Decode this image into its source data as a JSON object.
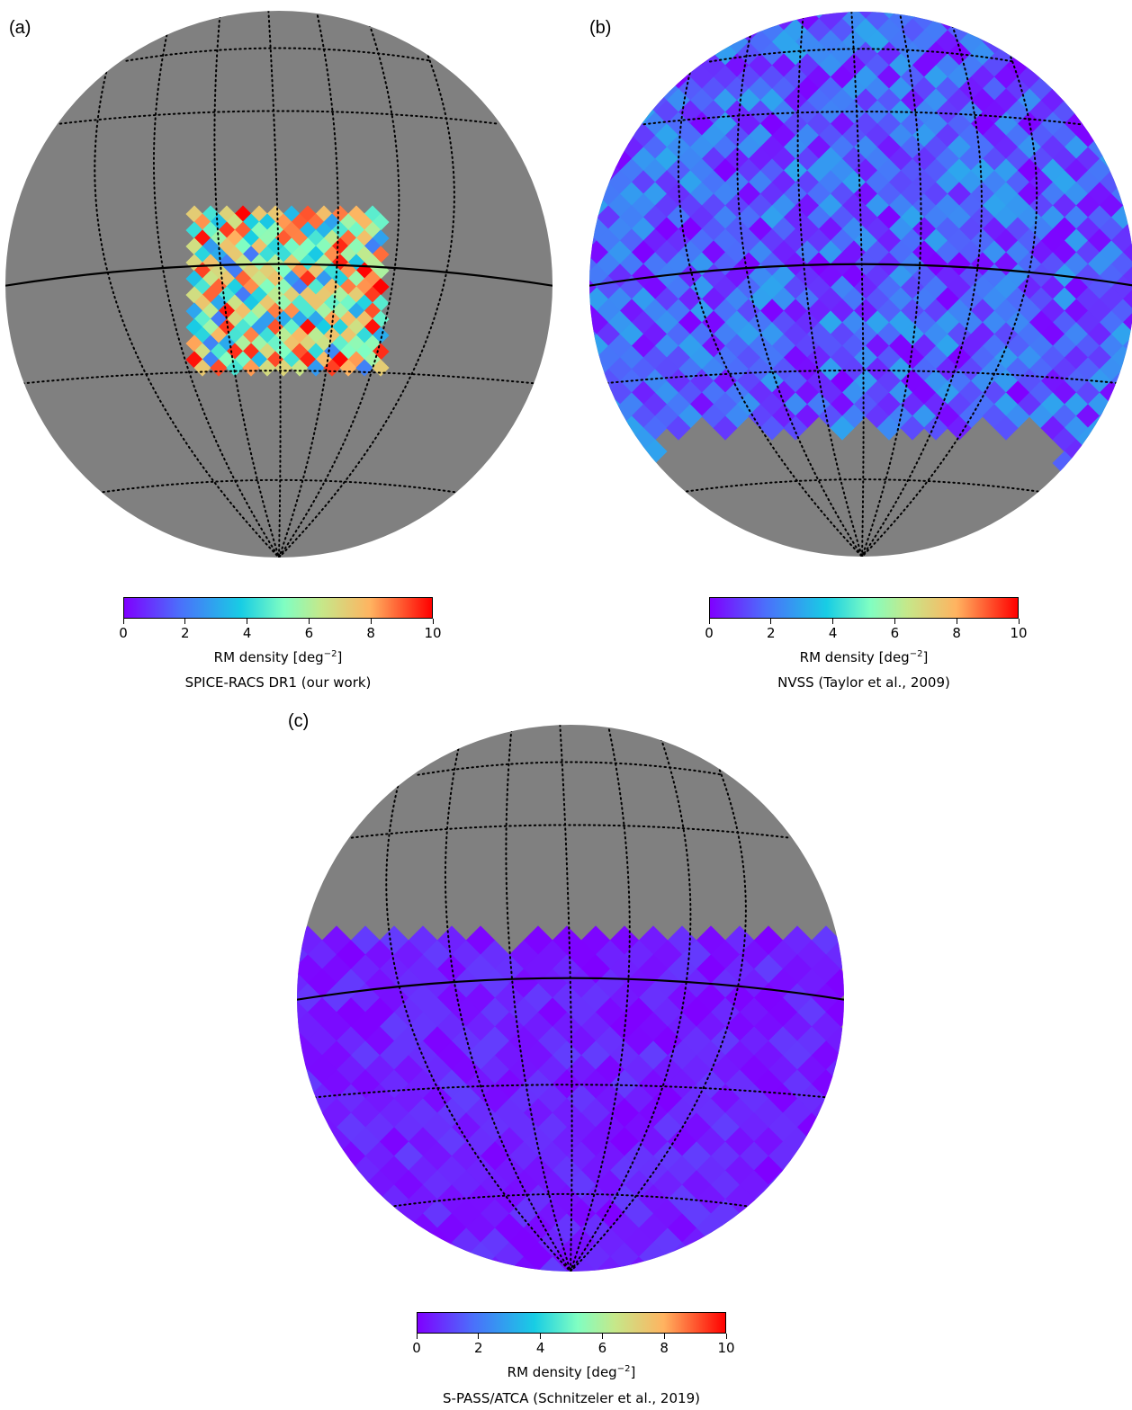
{
  "chart_data": [
    {
      "type": "heatmap",
      "panel": "(a)",
      "title": "SPICE-RACS DR1 (our work)",
      "colorbar_label": "RM density [deg",
      "colorbar_exponent": "−2",
      "colorbar_label_end": "]",
      "colorbar_ticks": [
        "0",
        "2",
        "4",
        "6",
        "8",
        "10"
      ],
      "vmin": 0,
      "vmax": 10,
      "coverage": "small rectangular patch near centre",
      "typical_density_range": [
        2,
        10
      ]
    },
    {
      "type": "heatmap",
      "panel": "(b)",
      "title": "NVSS (Taylor et al., 2009)",
      "colorbar_label": "RM density [deg",
      "colorbar_exponent": "−2",
      "colorbar_label_end": "]",
      "colorbar_ticks": [
        "0",
        "2",
        "4",
        "6",
        "8",
        "10"
      ],
      "vmin": 0,
      "vmax": 10,
      "coverage": "whole sphere except southern cap",
      "typical_density_range": [
        0,
        3
      ]
    },
    {
      "type": "heatmap",
      "panel": "(c)",
      "title": "S-PASS/ATCA (Schnitzeler et al., 2019)",
      "colorbar_label": "RM density [deg",
      "colorbar_exponent": "−2",
      "colorbar_label_end": "]",
      "colorbar_ticks": [
        "0",
        "2",
        "4",
        "6",
        "8",
        "10"
      ],
      "vmin": 0,
      "vmax": 10,
      "coverage": "southern part of sphere only",
      "typical_density_range": [
        0,
        1
      ]
    }
  ],
  "colors": {
    "masked": "#808080",
    "cmap_start": "#7f00ff",
    "cmap_end": "#ff0000",
    "grid_line": "#000000"
  }
}
